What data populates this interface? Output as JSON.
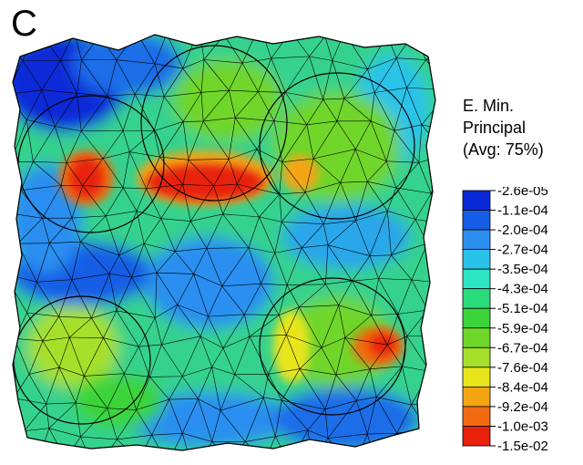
{
  "panel_label": "C",
  "legend": {
    "title_lines": [
      "E. Min.",
      "Principal",
      "(Avg: 75%)"
    ],
    "bands": [
      {
        "label": "-2.6e-05",
        "color": "#0a2ad8"
      },
      {
        "label": "-1.1e-04",
        "color": "#155de6"
      },
      {
        "label": "-2.0e-04",
        "color": "#2a8ff0"
      },
      {
        "label": "-2.7e-04",
        "color": "#29c3ea"
      },
      {
        "label": "-3.5e-04",
        "color": "#2de6c2"
      },
      {
        "label": "-4.3e-04",
        "color": "#2bdc7d"
      },
      {
        "label": "-5.1e-04",
        "color": "#3bd43a"
      },
      {
        "label": "-5.9e-04",
        "color": "#6fd62a"
      },
      {
        "label": "-6.7e-04",
        "color": "#a6e02a"
      },
      {
        "label": "-7.6e-04",
        "color": "#e8e51c"
      },
      {
        "label": "-8.4e-04",
        "color": "#f4a514"
      },
      {
        "label": "-9.2e-04",
        "color": "#f26a10"
      },
      {
        "label": "-1.0e-03",
        "color": "#e8200c"
      }
    ],
    "last_label": "-1.5e-02"
  },
  "regions": [
    {
      "name": "high-strain-band-top-center",
      "color": "#e8200c"
    },
    {
      "name": "high-strain-spot-top-left",
      "color": "#e8200c"
    },
    {
      "name": "high-strain-spot-bottom-right",
      "color": "#e8200c"
    },
    {
      "name": "low-strain-corner-top-left",
      "color": "#0a2ad8"
    },
    {
      "name": "low-strain-band-left",
      "color": "#155de6"
    }
  ]
}
